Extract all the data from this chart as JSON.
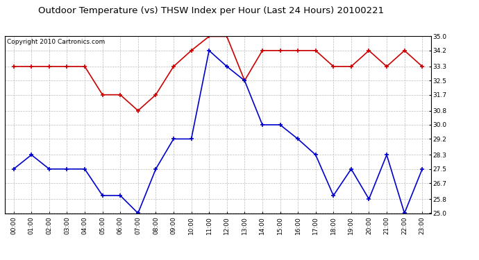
{
  "title": "Outdoor Temperature (vs) THSW Index per Hour (Last 24 Hours) 20100221",
  "copyright": "Copyright 2010 Cartronics.com",
  "hours": [
    "00:00",
    "01:00",
    "02:00",
    "03:00",
    "04:00",
    "05:00",
    "06:00",
    "07:00",
    "08:00",
    "09:00",
    "10:00",
    "11:00",
    "12:00",
    "13:00",
    "14:00",
    "15:00",
    "16:00",
    "17:00",
    "18:00",
    "19:00",
    "20:00",
    "21:00",
    "22:00",
    "23:00"
  ],
  "red_data": [
    33.3,
    33.3,
    33.3,
    33.3,
    33.3,
    31.7,
    31.7,
    30.8,
    31.7,
    33.3,
    34.2,
    35.0,
    35.0,
    32.5,
    34.2,
    34.2,
    34.2,
    34.2,
    33.3,
    33.3,
    34.2,
    33.3,
    34.2,
    33.3
  ],
  "blue_data": [
    27.5,
    28.3,
    27.5,
    27.5,
    27.5,
    26.0,
    26.0,
    25.0,
    27.5,
    29.2,
    29.2,
    34.2,
    33.3,
    32.5,
    30.0,
    30.0,
    29.2,
    28.3,
    26.0,
    27.5,
    25.8,
    28.3,
    25.0,
    27.5
  ],
  "ylim": [
    25.0,
    35.0
  ],
  "yticks": [
    25.0,
    25.8,
    26.7,
    27.5,
    28.3,
    29.2,
    30.0,
    30.8,
    31.7,
    32.5,
    33.3,
    34.2,
    35.0
  ],
  "red_color": "#cc0000",
  "blue_color": "#0000cc",
  "background_color": "#ffffff",
  "plot_bg_color": "#ffffff",
  "grid_color": "#bbbbbb",
  "title_fontsize": 9.5,
  "copyright_fontsize": 6.5,
  "tick_fontsize": 6.5
}
